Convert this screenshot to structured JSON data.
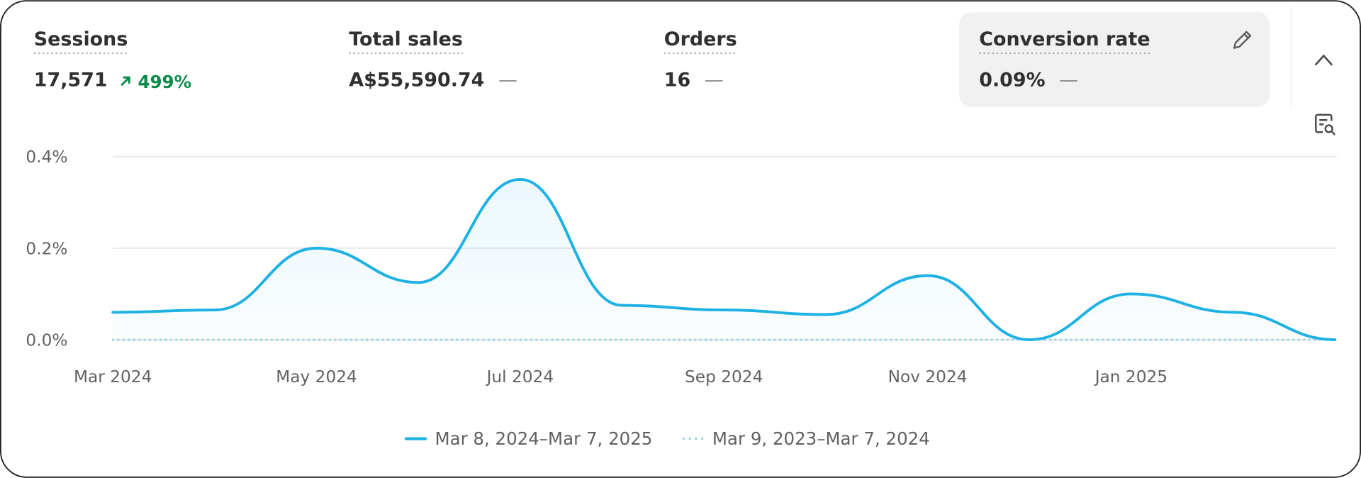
{
  "metrics": [
    {
      "label": "Sessions",
      "value": "17,571",
      "change": "499%"
    },
    {
      "label": "Total sales",
      "value": "A$55,590.74",
      "change": "—"
    },
    {
      "label": "Orders",
      "value": "16",
      "change": "—"
    },
    {
      "label": "Conversion rate",
      "value": "0.09%",
      "change": "—"
    }
  ],
  "chart_data": {
    "type": "line",
    "categories": [
      "Mar 2024",
      null,
      "May 2024",
      null,
      "Jul 2024",
      null,
      "Sep 2024",
      null,
      "Nov 2024",
      null,
      "Jan 2025",
      null,
      null
    ],
    "series": [
      {
        "name": "Mar 8, 2024–Mar 7, 2025",
        "color": "#1eb1e4",
        "values": [
          0.06,
          0.065,
          0.2,
          0.125,
          0.35,
          0.075,
          0.065,
          0.055,
          0.14,
          0.0,
          0.1,
          0.06,
          0.0
        ]
      },
      {
        "name": "Mar 9, 2023–Mar 7, 2024",
        "color": "#8ccde0",
        "values": [
          0,
          0,
          0,
          0,
          0,
          0,
          0,
          0,
          0,
          0,
          0,
          0,
          0
        ]
      }
    ],
    "ylim": [
      0,
      0.4
    ],
    "yticks": [
      {
        "value": 0,
        "label": "0.0%"
      },
      {
        "value": 0.2,
        "label": "0.2%"
      },
      {
        "value": 0.4,
        "label": "0.4%"
      }
    ],
    "grid": true
  }
}
